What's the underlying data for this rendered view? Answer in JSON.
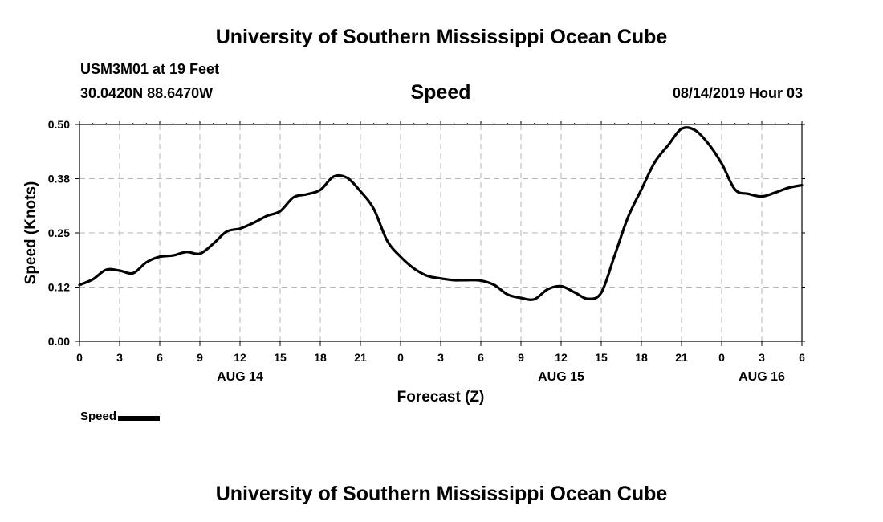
{
  "header": {
    "title": "University of Southern Mississippi Ocean Cube",
    "station": "USM3M01 at 19 Feet",
    "location": "30.0420N 88.6470W",
    "variable": "Speed",
    "datetime": "08/14/2019 Hour 03"
  },
  "footer": {
    "title": "University of Southern Mississippi Ocean Cube"
  },
  "legend": {
    "label": "Speed"
  },
  "chart_data": {
    "type": "line",
    "title": "Speed",
    "xlabel": "Forecast (Z)",
    "ylabel": "Speed (Knots)",
    "ylim": [
      0,
      0.5
    ],
    "xlim": [
      0,
      54
    ],
    "x_unit": "hours from 08/14/2019 00Z",
    "yticks": [
      {
        "value": 0.0,
        "label": "0.00"
      },
      {
        "value": 0.125,
        "label": "0.12"
      },
      {
        "value": 0.25,
        "label": "0.25"
      },
      {
        "value": 0.375,
        "label": "0.38"
      },
      {
        "value": 0.5,
        "label": "0.50"
      }
    ],
    "xticks": [
      {
        "value": 0,
        "label": "0"
      },
      {
        "value": 3,
        "label": "3"
      },
      {
        "value": 6,
        "label": "6"
      },
      {
        "value": 9,
        "label": "9"
      },
      {
        "value": 12,
        "label": "12"
      },
      {
        "value": 15,
        "label": "15"
      },
      {
        "value": 18,
        "label": "18"
      },
      {
        "value": 21,
        "label": "21"
      },
      {
        "value": 24,
        "label": "0"
      },
      {
        "value": 27,
        "label": "3"
      },
      {
        "value": 30,
        "label": "6"
      },
      {
        "value": 33,
        "label": "9"
      },
      {
        "value": 36,
        "label": "12"
      },
      {
        "value": 39,
        "label": "15"
      },
      {
        "value": 42,
        "label": "18"
      },
      {
        "value": 45,
        "label": "21"
      },
      {
        "value": 48,
        "label": "0"
      },
      {
        "value": 51,
        "label": "3"
      },
      {
        "value": 54,
        "label": "6"
      }
    ],
    "date_labels": [
      {
        "value": 12,
        "label": "AUG 14"
      },
      {
        "value": 36,
        "label": "AUG 15"
      },
      {
        "value": 51,
        "label": "AUG 16"
      }
    ],
    "grid": true,
    "legend_position": "bottom-left",
    "series": [
      {
        "name": "Speed",
        "color": "#000000",
        "x": [
          0,
          1,
          2,
          3,
          4,
          5,
          6,
          7,
          8,
          9,
          10,
          11,
          12,
          13,
          14,
          15,
          16,
          17,
          18,
          19,
          20,
          21,
          22,
          23,
          24,
          25,
          26,
          27,
          28,
          29,
          30,
          31,
          32,
          33,
          34,
          35,
          36,
          37,
          38,
          39,
          40,
          41,
          42,
          43,
          44,
          45,
          46,
          47,
          48,
          49,
          50,
          51,
          52,
          53,
          54
        ],
        "values": [
          0.13,
          0.143,
          0.165,
          0.163,
          0.157,
          0.182,
          0.195,
          0.198,
          0.206,
          0.202,
          0.225,
          0.253,
          0.26,
          0.273,
          0.289,
          0.3,
          0.332,
          0.339,
          0.349,
          0.38,
          0.377,
          0.346,
          0.305,
          0.232,
          0.195,
          0.168,
          0.151,
          0.145,
          0.141,
          0.141,
          0.14,
          0.13,
          0.108,
          0.1,
          0.097,
          0.12,
          0.127,
          0.113,
          0.098,
          0.112,
          0.198,
          0.286,
          0.35,
          0.413,
          0.452,
          0.49,
          0.487,
          0.456,
          0.41,
          0.35,
          0.34,
          0.334,
          0.343,
          0.354,
          0.36
        ]
      }
    ]
  }
}
